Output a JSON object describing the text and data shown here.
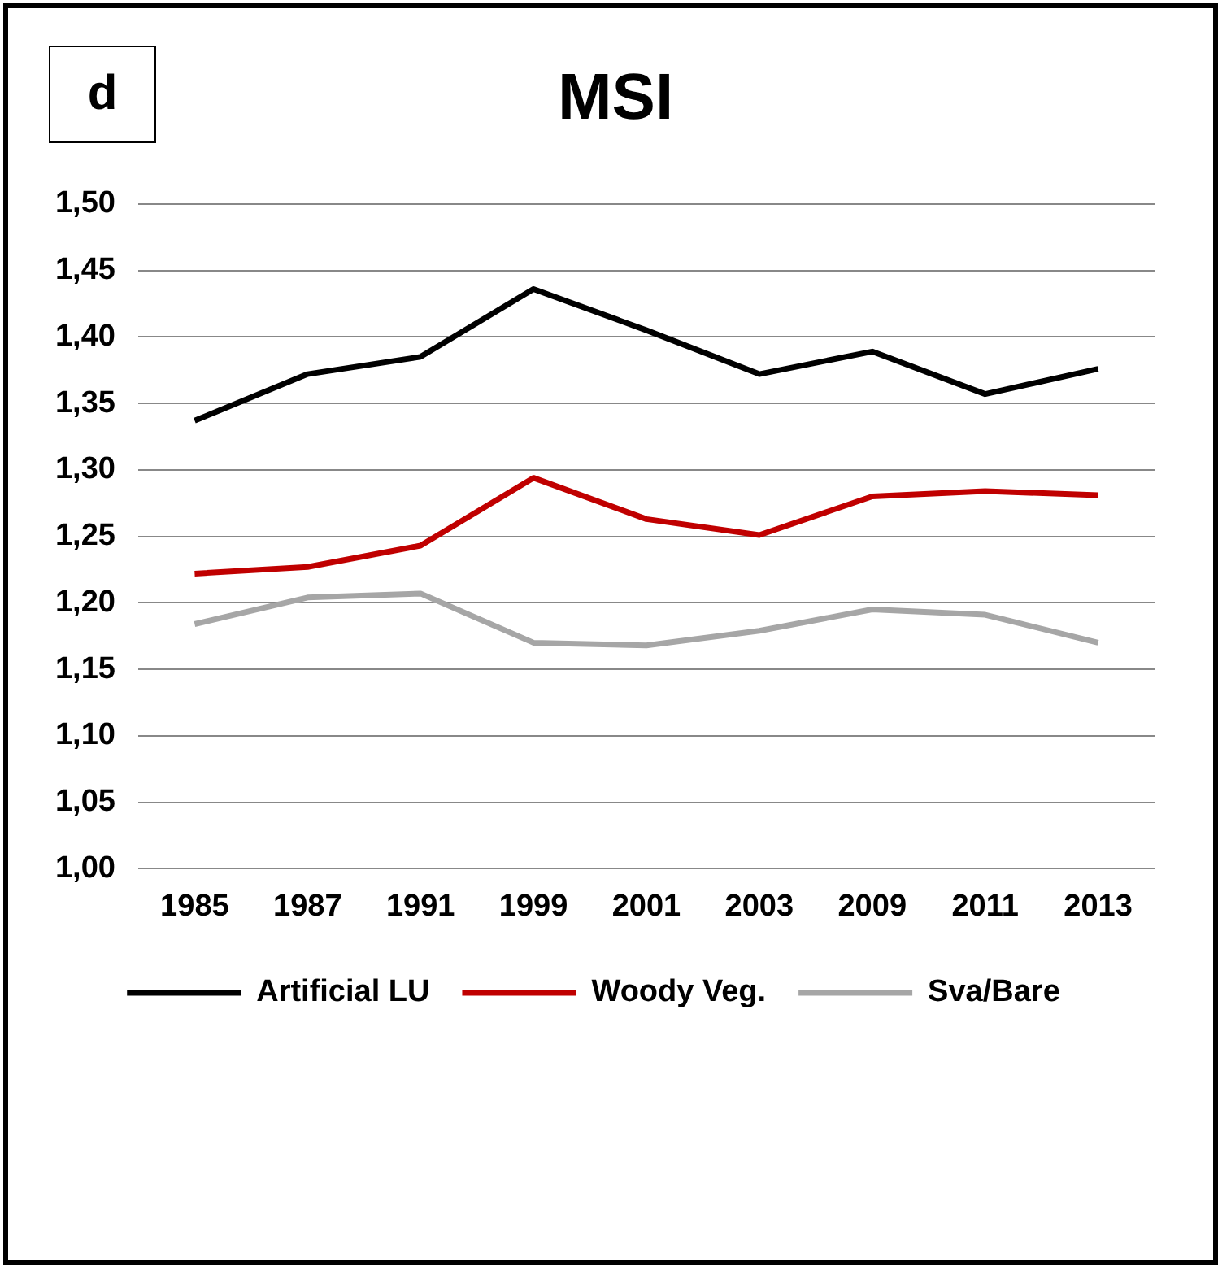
{
  "chart_data": {
    "type": "line",
    "title": "MSI",
    "annotations": [
      "d"
    ],
    "categories": [
      "1985",
      "1987",
      "1991",
      "1999",
      "2001",
      "2003",
      "2009",
      "2011",
      "2013"
    ],
    "series": [
      {
        "name": "Artificial LU",
        "color": "#000000",
        "values": [
          1.337,
          1.372,
          1.385,
          1.436,
          1.405,
          1.372,
          1.389,
          1.357,
          1.376
        ]
      },
      {
        "name": "Woody Veg.",
        "color": "#c00000",
        "values": [
          1.222,
          1.227,
          1.243,
          1.294,
          1.263,
          1.251,
          1.28,
          1.284,
          1.281
        ]
      },
      {
        "name": "Sva/Bare",
        "color": "#a6a6a6",
        "values": [
          1.184,
          1.204,
          1.207,
          1.17,
          1.168,
          1.179,
          1.195,
          1.191,
          1.17
        ]
      }
    ],
    "ylim": [
      1.0,
      1.5
    ],
    "yticks": [
      {
        "value": 1.0,
        "label": "1,00"
      },
      {
        "value": 1.05,
        "label": "1,05"
      },
      {
        "value": 1.1,
        "label": "1,10"
      },
      {
        "value": 1.15,
        "label": "1,15"
      },
      {
        "value": 1.2,
        "label": "1,20"
      },
      {
        "value": 1.25,
        "label": "1,25"
      },
      {
        "value": 1.3,
        "label": "1,30"
      },
      {
        "value": 1.35,
        "label": "1,35"
      },
      {
        "value": 1.4,
        "label": "1,40"
      },
      {
        "value": 1.45,
        "label": "1,45"
      },
      {
        "value": 1.5,
        "label": "1,50"
      }
    ],
    "grid": "y",
    "legend": "bottom",
    "marker": "none",
    "line_style": "solid"
  }
}
